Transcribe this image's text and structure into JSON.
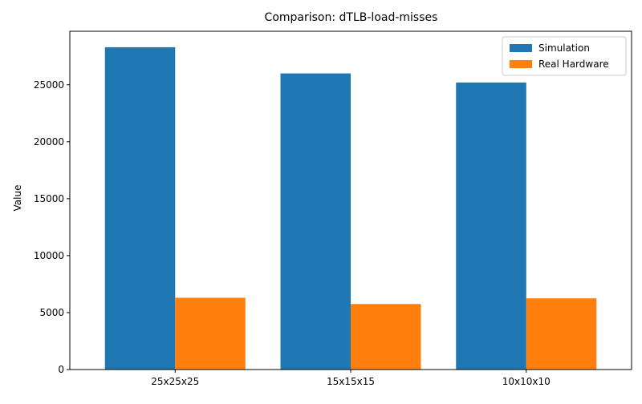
{
  "chart_data": {
    "type": "bar",
    "title": "Comparison: dTLB-load-misses",
    "xlabel": "",
    "ylabel": "Value",
    "categories": [
      "25x25x25",
      "15x15x15",
      "10x10x10"
    ],
    "series": [
      {
        "name": "Simulation",
        "color": "#1f77b4",
        "values": [
          28300,
          26000,
          25200
        ]
      },
      {
        "name": "Real Hardware",
        "color": "#ff7f0e",
        "values": [
          6300,
          5750,
          6250
        ]
      }
    ],
    "ylim": [
      0,
      29700
    ],
    "yticks": [
      0,
      5000,
      10000,
      15000,
      20000,
      25000
    ],
    "grid": false,
    "legend_position": "top-right"
  }
}
